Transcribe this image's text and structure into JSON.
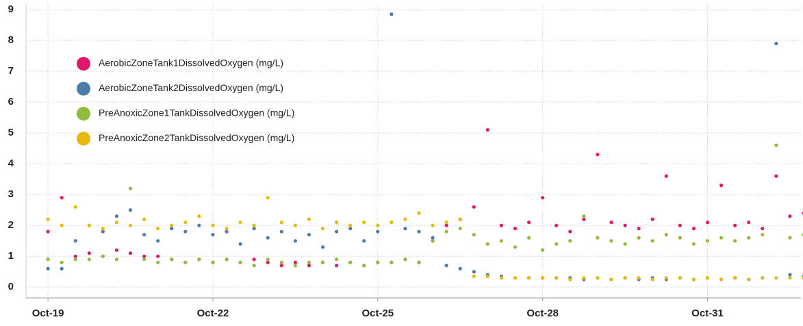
{
  "chart_data": {
    "type": "scatter",
    "x": [
      0,
      0.25,
      0.5,
      0.75,
      1,
      1.25,
      1.5,
      1.75,
      2,
      2.25,
      2.5,
      2.75,
      3,
      3.25,
      3.5,
      3.75,
      4,
      4.25,
      4.5,
      4.75,
      5,
      5.25,
      5.5,
      5.75,
      6,
      6.25,
      6.5,
      6.75,
      7,
      7.25,
      7.5,
      7.75,
      8,
      8.25,
      8.5,
      8.75,
      9,
      9.25,
      9.5,
      9.75,
      10,
      10.25,
      10.5,
      10.75,
      11,
      11.25,
      11.5,
      11.75,
      12,
      12.25,
      12.5,
      12.75,
      13,
      13.25,
      13.5,
      13.75
    ],
    "series": [
      {
        "name": "AerobicZoneTank1DissolvedOxygen (mg/L)",
        "color": "#e0176b",
        "values": [
          1.8,
          2.9,
          1.0,
          1.1,
          1.0,
          1.2,
          1.1,
          1.0,
          1.0,
          0.9,
          0.8,
          0.9,
          0.8,
          0.9,
          0.8,
          0.9,
          0.8,
          0.7,
          0.8,
          0.7,
          0.8,
          0.7,
          0.8,
          0.7,
          0.8,
          0.8,
          0.9,
          0.8,
          1.5,
          2.0,
          2.2,
          2.6,
          5.1,
          2.0,
          1.9,
          2.1,
          2.9,
          2.0,
          1.8,
          2.2,
          4.3,
          2.1,
          2.0,
          1.9,
          2.2,
          3.6,
          2.0,
          1.9,
          2.1,
          3.3,
          2.0,
          2.1,
          1.9,
          3.6,
          2.3,
          2.4
        ]
      },
      {
        "name": "AerobicZoneTank2DissolvedOxygen (mg/L)",
        "color": "#4a7cac",
        "values": [
          0.6,
          0.6,
          1.5,
          2.0,
          1.8,
          2.3,
          2.5,
          1.7,
          1.5,
          1.9,
          1.8,
          2.0,
          1.7,
          1.8,
          1.4,
          1.9,
          1.6,
          1.8,
          1.5,
          1.7,
          1.3,
          1.8,
          1.9,
          1.5,
          1.8,
          8.85,
          1.9,
          1.8,
          1.6,
          0.7,
          0.6,
          0.5,
          0.4,
          0.35,
          0.3,
          0.3,
          0.3,
          0.3,
          0.3,
          0.25,
          0.3,
          0.25,
          0.3,
          0.25,
          0.3,
          0.25,
          0.3,
          0.25,
          0.3,
          0.25,
          0.3,
          0.25,
          0.3,
          7.9,
          0.4,
          0.35
        ]
      },
      {
        "name": "PreAnoxicZone1TankDissolvedOxygen (mg/L)",
        "color": "#8fbc3a",
        "values": [
          0.9,
          0.8,
          0.9,
          0.9,
          1.0,
          0.9,
          3.2,
          0.9,
          0.8,
          0.9,
          0.8,
          0.9,
          0.8,
          0.9,
          0.8,
          0.7,
          0.9,
          0.8,
          0.7,
          0.8,
          0.8,
          0.9,
          0.8,
          0.7,
          0.8,
          0.8,
          0.9,
          0.8,
          1.5,
          1.8,
          1.9,
          1.7,
          1.4,
          1.5,
          1.3,
          1.6,
          1.2,
          1.4,
          1.5,
          2.3,
          1.6,
          1.5,
          1.4,
          1.6,
          1.5,
          1.7,
          1.6,
          1.4,
          1.5,
          1.6,
          1.5,
          1.6,
          1.7,
          4.6,
          1.6,
          1.7
        ]
      },
      {
        "name": "PreAnoxicZone2TankDissolvedOxygen (mg/L)",
        "color": "#e8b80a",
        "values": [
          2.2,
          2.0,
          2.6,
          2.0,
          1.9,
          2.1,
          2.0,
          2.2,
          1.9,
          2.0,
          2.1,
          2.3,
          2.0,
          1.9,
          2.1,
          2.0,
          2.9,
          2.1,
          2.0,
          2.2,
          1.9,
          2.1,
          2.0,
          2.1,
          2.0,
          2.1,
          2.2,
          2.4,
          2.0,
          2.1,
          2.2,
          0.35,
          0.35,
          0.3,
          0.3,
          0.3,
          0.3,
          0.3,
          0.25,
          0.3,
          0.3,
          0.25,
          0.3,
          0.3,
          0.25,
          0.3,
          0.3,
          0.25,
          0.3,
          0.25,
          0.3,
          0.25,
          0.3,
          0.3,
          0.3,
          0.3
        ]
      }
    ],
    "xlim": [
      -0.4,
      13.7
    ],
    "xticks": [
      {
        "value": 0,
        "label": "Oct-19"
      },
      {
        "value": 3,
        "label": "Oct-22"
      },
      {
        "value": 6,
        "label": "Oct-25"
      },
      {
        "value": 9,
        "label": "Oct-28"
      },
      {
        "value": 12,
        "label": "Oct-31"
      }
    ],
    "ylim": [
      -0.35,
      9.2
    ],
    "yticks": [
      0,
      1,
      2,
      3,
      4,
      5,
      6,
      7,
      8,
      9
    ],
    "grid": true,
    "legend": "top-left"
  }
}
